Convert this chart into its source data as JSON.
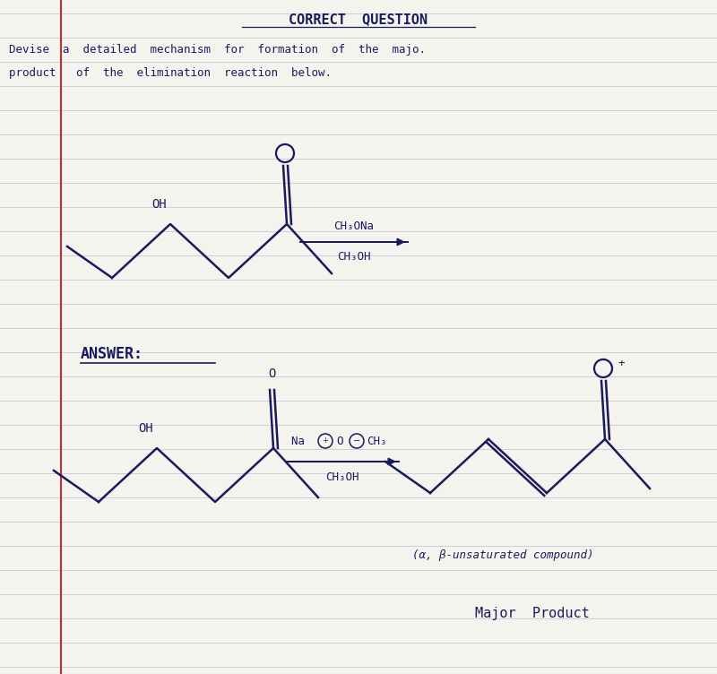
{
  "bg_color": "#f5f3ee",
  "line_color": "#c5cad8",
  "ink_color": "#1a1a5e",
  "red_margin_color": "#c03030",
  "title": "CORRECT  QUESTION",
  "answer_label": "ANSWER:",
  "reagent1_line1": "CH₃ONa",
  "reagent1_line2": "CH₃OH",
  "reagent2_line2": "CH₃OH",
  "label_alpha_beta": "(α, β-unsaturated compound)",
  "label_major": "Major  Product",
  "q1": "Devise  a  detailed  mechanism  for  formation  of  the  majo.",
  "q2": "product   of  the  elimination  reaction  below."
}
